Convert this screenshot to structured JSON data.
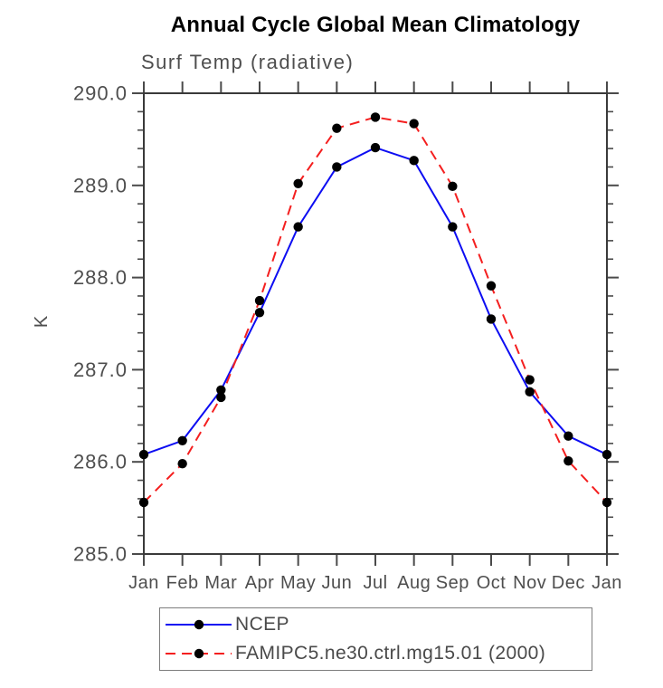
{
  "chart_data": {
    "type": "line",
    "title": "Annual Cycle Global Mean Climatology",
    "subtitle": "Surf Temp (radiative)",
    "xlabel": "",
    "ylabel": "K",
    "categories": [
      "Jan",
      "Feb",
      "Mar",
      "Apr",
      "May",
      "Jun",
      "Jul",
      "Aug",
      "Sep",
      "Oct",
      "Nov",
      "Dec",
      "Jan"
    ],
    "ylim": [
      285.0,
      290.0
    ],
    "ytick_major_step": 1.0,
    "ytick_minor_step": 0.2,
    "ytick_labels": [
      "285.0",
      "286.0",
      "287.0",
      "288.0",
      "289.0",
      "290.0"
    ],
    "grid": "off",
    "legend_position": "bottom",
    "series": [
      {
        "name": "NCEP",
        "line_style": "solid",
        "color": "#0d0df2",
        "marker": "filled-circle",
        "marker_color": "#000000",
        "values": [
          286.08,
          286.23,
          286.78,
          287.62,
          288.55,
          289.2,
          289.41,
          289.27,
          288.55,
          287.55,
          286.76,
          286.28,
          286.08
        ]
      },
      {
        "name": "FAMIPC5.ne30.ctrl.mg15.01 (2000)",
        "line_style": "dashed",
        "color": "#f41f1f",
        "marker": "filled-circle",
        "marker_color": "#000000",
        "values": [
          285.56,
          285.98,
          286.7,
          287.75,
          289.02,
          289.62,
          289.74,
          289.67,
          288.99,
          287.91,
          286.89,
          286.01,
          285.56
        ]
      }
    ],
    "units_label": "K"
  },
  "style": {
    "axis_color": "#3a3a3a",
    "tick_color": "#4a4a4a",
    "label_color": "#4e4e4e",
    "title_color": "#000000"
  }
}
